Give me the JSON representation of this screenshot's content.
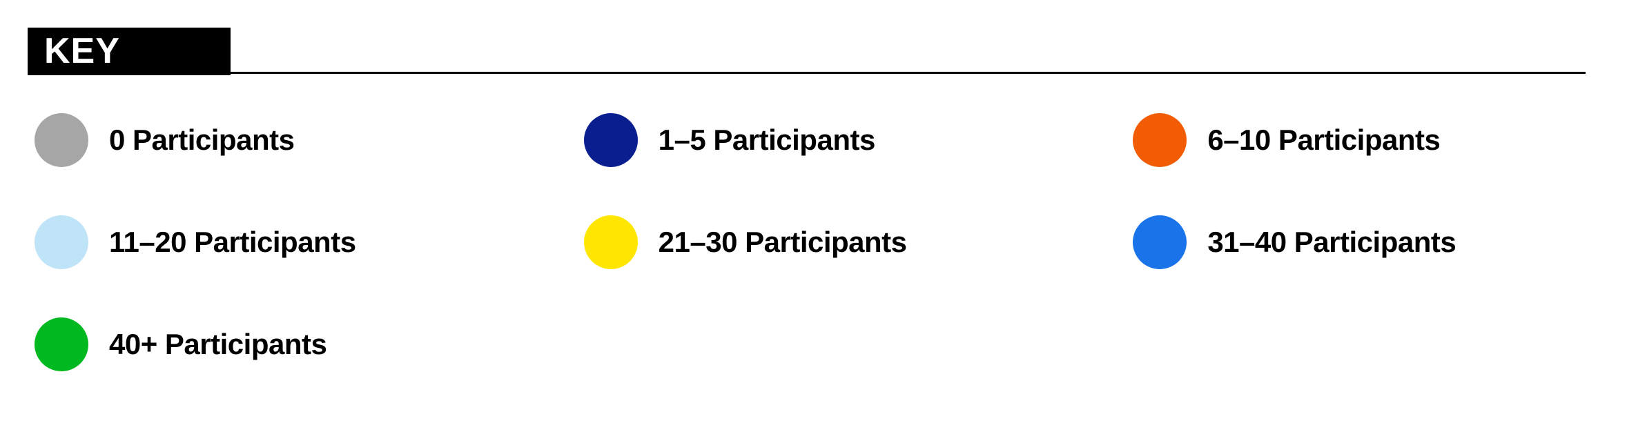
{
  "title": "KEY",
  "title_bg": "#000000",
  "title_color": "#ffffff",
  "rule_color": "#000000",
  "background_color": "#ffffff",
  "label_color": "#000000",
  "label_fontsize": 42,
  "swatch_diameter": 78,
  "grid_columns": 3,
  "items": [
    {
      "label": "0 Participants",
      "color": "#a6a6a6"
    },
    {
      "label": "1–5 Participants",
      "color": "#0a1f8f"
    },
    {
      "label": "6–10 Participants",
      "color": "#f25c05"
    },
    {
      "label": "11–20 Participants",
      "color": "#bfe3f7"
    },
    {
      "label": "21–30 Participants",
      "color": "#ffe600"
    },
    {
      "label": "31–40 Participants",
      "color": "#1a73e8"
    },
    {
      "label": "40+ Participants",
      "color": "#00b81f"
    }
  ]
}
